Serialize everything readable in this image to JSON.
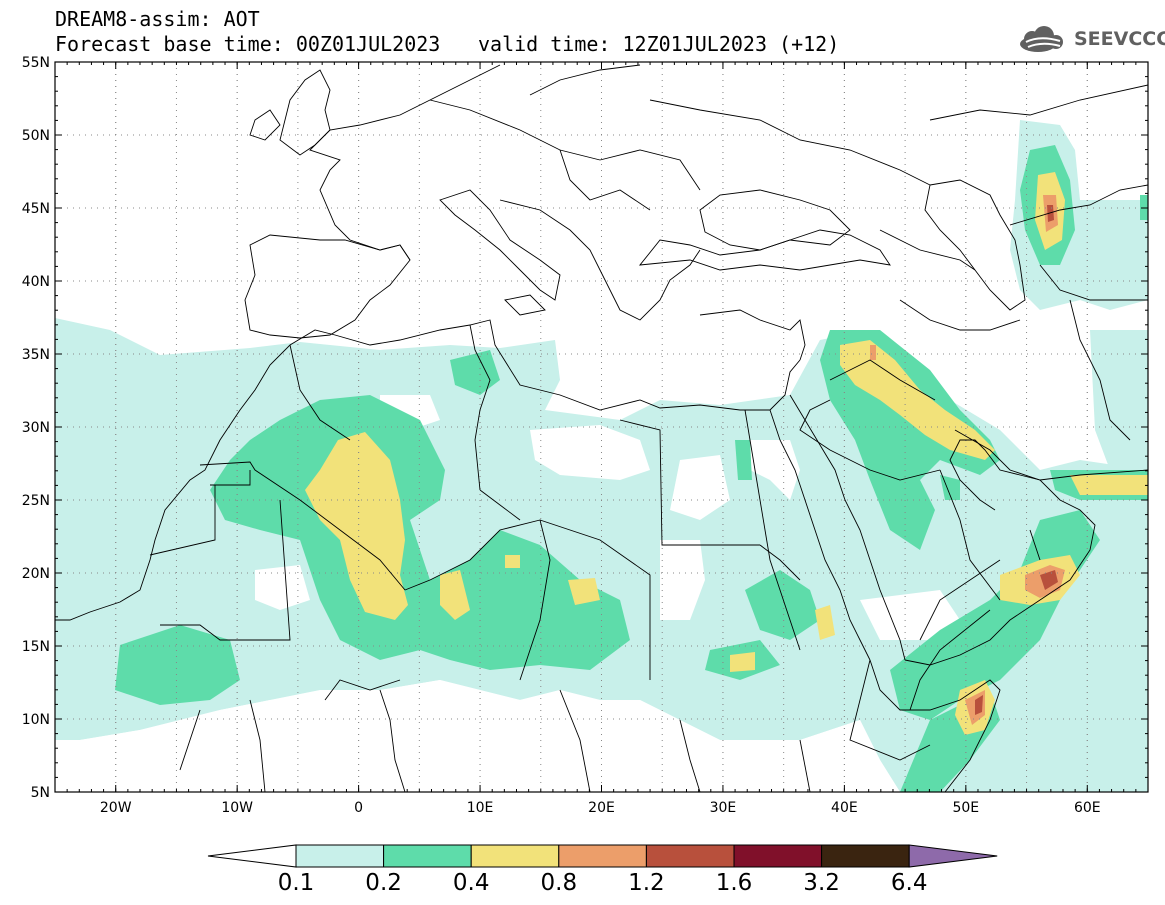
{
  "header": {
    "line1": "DREAM8-assim: AOT",
    "line2": "Forecast base time: 00Z01JUL2023",
    "line3": "valid time: 12Z01JUL2023 (+12)"
  },
  "logo": {
    "text": "SEEVCCC",
    "icon": "cloud-icon"
  },
  "map": {
    "lon_range": [
      -25,
      65
    ],
    "lat_range": [
      5,
      55
    ],
    "lat_labels": [
      "5N",
      "10N",
      "15N",
      "20N",
      "25N",
      "30N",
      "35N",
      "40N",
      "45N",
      "50N",
      "55N"
    ],
    "lon_labels": [
      "20W",
      "10W",
      "0",
      "10E",
      "20E",
      "30E",
      "40E",
      "50E",
      "60E"
    ],
    "gridlines": "dotted"
  },
  "legend": {
    "levels": [
      "0.1",
      "0.2",
      "0.4",
      "0.8",
      "1.2",
      "1.6",
      "3.2",
      "6.4"
    ],
    "colors": [
      "#c8f0ea",
      "#5edcaa",
      "#f2e27a",
      "#ec9e6a",
      "#b8503c",
      "#80102a",
      "#3a2410",
      "#8e6aaa"
    ],
    "under_color": "#ffffff"
  }
}
